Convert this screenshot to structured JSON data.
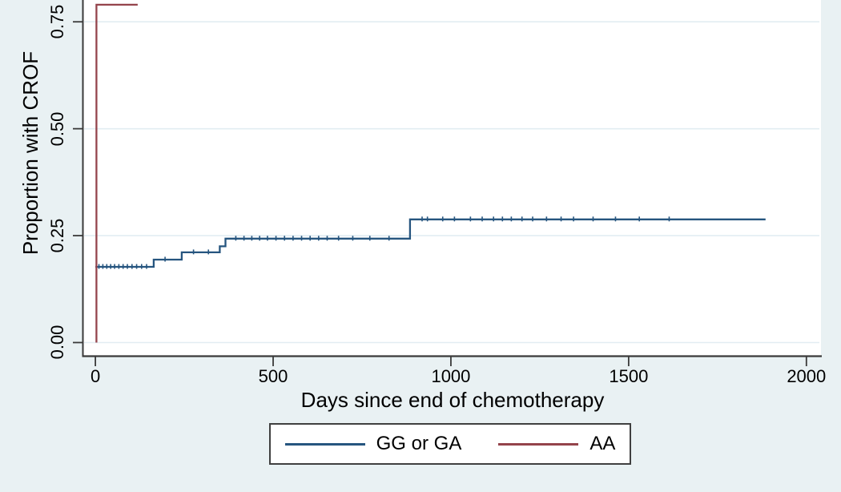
{
  "figure": {
    "background_color": "#e9f1f3",
    "plot_background_color": "#ffffff",
    "grid_color": "#e2edf2",
    "axis_color": "#3a3a3a",
    "tick_color": "#3a3a3a",
    "legend_border_color": "#404040",
    "text_color": "#000000"
  },
  "chart_data": {
    "type": "line",
    "subtype": "kaplan-meier-step-cumulative-incidence",
    "title": "",
    "xlabel": "Days since end of chemotherapy",
    "ylabel": "Proportion with CROF",
    "grid": "horizontal gridlines at y ticks, plot cropped at top (~0.80)",
    "legend_position": "bottom center, boxed",
    "xlim": [
      -34,
      2041
    ],
    "ylim": [
      -0.03,
      0.801
    ],
    "x_ticks": [
      {
        "value": 0,
        "label": "0"
      },
      {
        "value": 500,
        "label": "500"
      },
      {
        "value": 1000,
        "label": "1000"
      },
      {
        "value": 1500,
        "label": "1500"
      },
      {
        "value": 2000,
        "label": "2000"
      }
    ],
    "y_ticks": [
      {
        "value": 0.0,
        "label": "0.00"
      },
      {
        "value": 0.25,
        "label": "0.25"
      },
      {
        "value": 0.5,
        "label": "0.50"
      },
      {
        "value": 0.75,
        "label": "0.75"
      }
    ],
    "series": [
      {
        "name": "GG or GA",
        "color": "#26557f",
        "steps": [
          [
            0,
            0.177
          ],
          [
            164,
            0.177
          ],
          [
            164,
            0.194
          ],
          [
            243,
            0.194
          ],
          [
            243,
            0.211
          ],
          [
            350,
            0.211
          ],
          [
            350,
            0.225
          ],
          [
            366,
            0.225
          ],
          [
            366,
            0.243
          ],
          [
            885,
            0.243
          ],
          [
            885,
            0.288
          ],
          [
            1885,
            0.288
          ]
        ],
        "censor_marks": [
          [
            10,
            0.177
          ],
          [
            21,
            0.177
          ],
          [
            32,
            0.177
          ],
          [
            43,
            0.177
          ],
          [
            54,
            0.177
          ],
          [
            66,
            0.177
          ],
          [
            78,
            0.177
          ],
          [
            90,
            0.177
          ],
          [
            103,
            0.177
          ],
          [
            116,
            0.177
          ],
          [
            130,
            0.177
          ],
          [
            144,
            0.177
          ],
          [
            196,
            0.194
          ],
          [
            276,
            0.211
          ],
          [
            318,
            0.211
          ],
          [
            395,
            0.243
          ],
          [
            418,
            0.243
          ],
          [
            440,
            0.243
          ],
          [
            462,
            0.243
          ],
          [
            484,
            0.243
          ],
          [
            508,
            0.243
          ],
          [
            532,
            0.243
          ],
          [
            556,
            0.243
          ],
          [
            580,
            0.243
          ],
          [
            604,
            0.243
          ],
          [
            628,
            0.243
          ],
          [
            652,
            0.243
          ],
          [
            684,
            0.243
          ],
          [
            724,
            0.243
          ],
          [
            772,
            0.243
          ],
          [
            826,
            0.243
          ],
          [
            919,
            0.288
          ],
          [
            934,
            0.288
          ],
          [
            977,
            0.288
          ],
          [
            1010,
            0.288
          ],
          [
            1055,
            0.288
          ],
          [
            1088,
            0.288
          ],
          [
            1120,
            0.288
          ],
          [
            1145,
            0.288
          ],
          [
            1170,
            0.288
          ],
          [
            1200,
            0.288
          ],
          [
            1230,
            0.288
          ],
          [
            1269,
            0.288
          ],
          [
            1310,
            0.288
          ],
          [
            1345,
            0.288
          ],
          [
            1400,
            0.288
          ],
          [
            1463,
            0.288
          ],
          [
            1530,
            0.288
          ],
          [
            1614,
            0.288
          ]
        ]
      },
      {
        "name": "AA",
        "color": "#94434b",
        "steps": [
          [
            3,
            0
          ],
          [
            3,
            0.79
          ],
          [
            119,
            0.79
          ]
        ],
        "censor_marks": []
      }
    ]
  }
}
